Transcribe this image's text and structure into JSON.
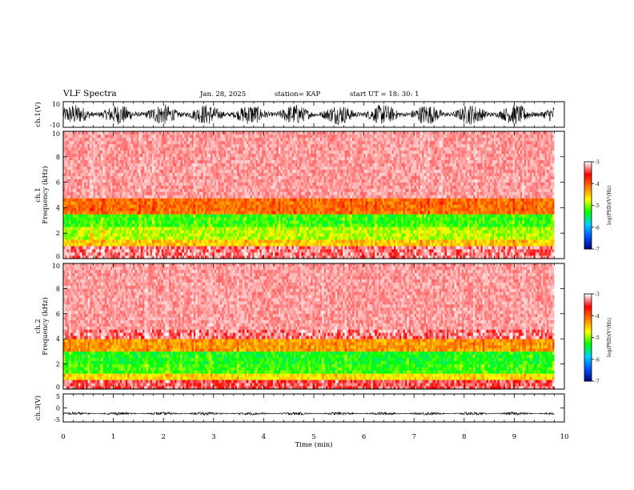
{
  "header": {
    "title": "VLF Spectra",
    "date": "Jan. 28, 2025",
    "station": "station= KAP",
    "start": "start  UT  =  18: 30: 1"
  },
  "chart_data": [
    {
      "type": "line",
      "panel": "ch1-waveform",
      "ylabel": "ch.1(V)",
      "ylim": [
        -10,
        10
      ],
      "yticks": [
        "10",
        "-10"
      ],
      "xlim": [
        0,
        10
      ],
      "style": "dense black oscillation filling most of the range, roughly -8 to 8 V, duration about 9.8 min"
    },
    {
      "type": "heatmap",
      "panel": "ch1-spectrogram",
      "ylabel": "ch.1\nFrequency (kHz)",
      "ylim": [
        0,
        10
      ],
      "yticks": [
        "0",
        "2",
        "4",
        "6",
        "8",
        "10"
      ],
      "xlim": [
        0,
        10
      ],
      "data_extent_min": 9.8,
      "bands": [
        {
          "from": 0,
          "to": 0.8,
          "level": -3.3
        },
        {
          "from": 0.8,
          "to": 1.3,
          "level": -4.5
        },
        {
          "from": 1.3,
          "to": 2.5,
          "level": -4.9
        },
        {
          "from": 2.5,
          "to": 3.5,
          "level": -5.2
        },
        {
          "from": 3.5,
          "to": 4.6,
          "level": -4.1
        },
        {
          "from": 4.6,
          "to": 10,
          "level": -3.3
        }
      ],
      "colorbar": {
        "label": "log(PSD)(V²/Hz)",
        "min": -7,
        "max": -3,
        "ticks": [
          "-3",
          "-4",
          "-5",
          "-6",
          "-7"
        ]
      }
    },
    {
      "type": "heatmap",
      "panel": "ch2-spectrogram",
      "ylabel": "ch.2\nFrequency (kHz)",
      "ylim": [
        0,
        10
      ],
      "yticks": [
        "0",
        "2",
        "4",
        "6",
        "8",
        "10"
      ],
      "xlim": [
        0,
        10
      ],
      "data_extent_min": 9.8,
      "bands": [
        {
          "from": 0,
          "to": 0.6,
          "level": -3.4
        },
        {
          "from": 0.6,
          "to": 1.2,
          "level": -4.6
        },
        {
          "from": 1.2,
          "to": 2.0,
          "level": -5.2
        },
        {
          "from": 2.0,
          "to": 3.0,
          "level": -5.3
        },
        {
          "from": 3.0,
          "to": 3.8,
          "level": -4.3
        },
        {
          "from": 3.8,
          "to": 10,
          "level": -3.3
        }
      ],
      "colorbar": {
        "label": "log(PSD)(V²/Hz)",
        "min": -7,
        "max": -3,
        "ticks": [
          "-3",
          "-4",
          "-5",
          "-6",
          "-7"
        ]
      }
    },
    {
      "type": "line",
      "panel": "ch3-waveform",
      "ylabel": "ch.3(V)",
      "ylim": [
        -5,
        5
      ],
      "yticks": [
        "5",
        "0",
        "-5"
      ],
      "xlim": [
        0,
        10
      ],
      "xlabel": "Time (min)",
      "xticks": [
        "0",
        "1",
        "2",
        "3",
        "4",
        "5",
        "6",
        "7",
        "8",
        "9",
        "10"
      ],
      "style": "thin dense band centered near -2 V, amplitude about 0.5 V, duration about 9.8 min"
    }
  ],
  "colors": {
    "scale": [
      "#000078",
      "#0050ff",
      "#00d2ff",
      "#00ff00",
      "#ffff00",
      "#ff7800",
      "#ff0000",
      "#ffffff"
    ],
    "trace": "#000000"
  }
}
